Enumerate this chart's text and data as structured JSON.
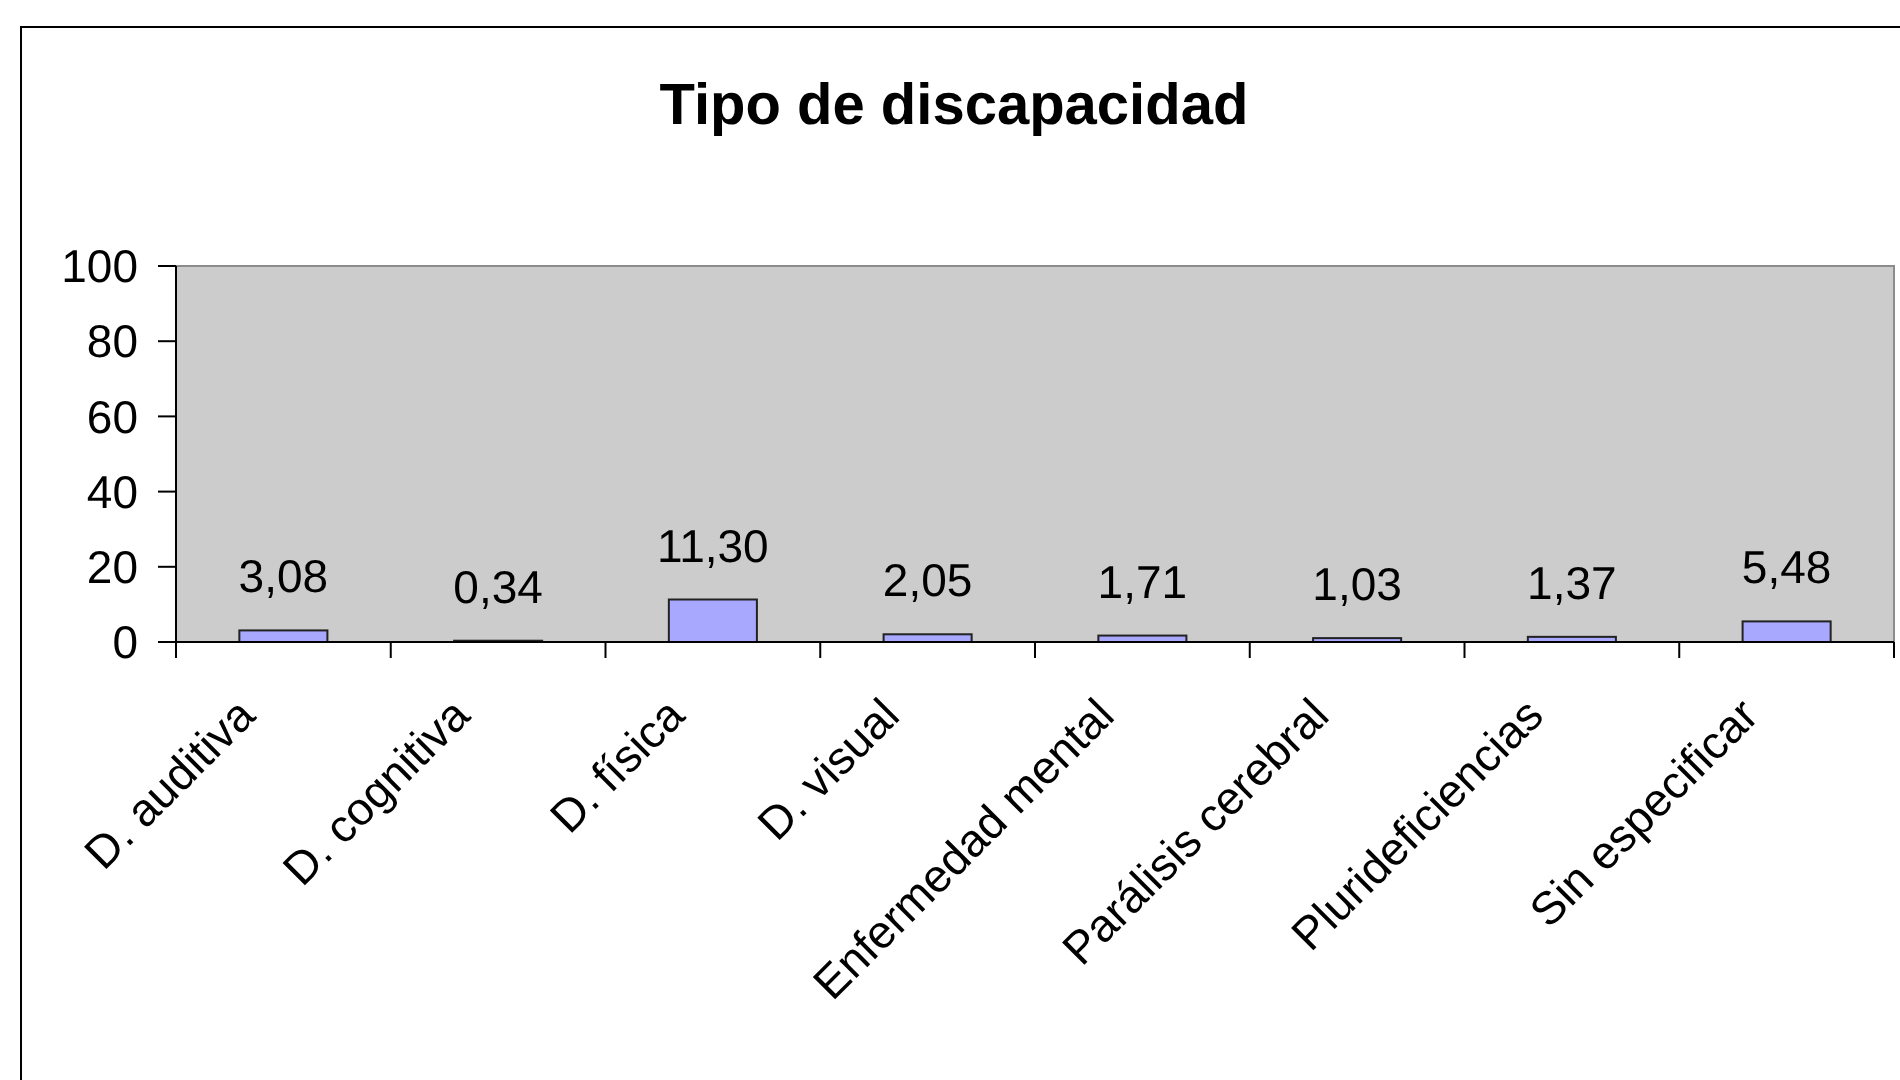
{
  "chart_data": {
    "type": "bar",
    "title": "Tipo de discapacidad",
    "categories": [
      "D. auditiva",
      "D. cognitiva",
      "D. física",
      "D. visual",
      "Enfermedad mental",
      "Parálisis cerebral",
      "Plurideficiencias",
      "Sin especificar"
    ],
    "values": [
      3.08,
      0.34,
      11.3,
      2.05,
      1.71,
      1.03,
      1.37,
      5.48
    ],
    "value_labels": [
      "3,08",
      "0,34",
      "11,30",
      "2,05",
      "1,71",
      "1,03",
      "1,37",
      "5,48"
    ],
    "color": "#a8a8ff",
    "ylim": [
      0,
      100
    ],
    "yticks": [
      0,
      20,
      40,
      60,
      80,
      100
    ],
    "grid": false
  }
}
